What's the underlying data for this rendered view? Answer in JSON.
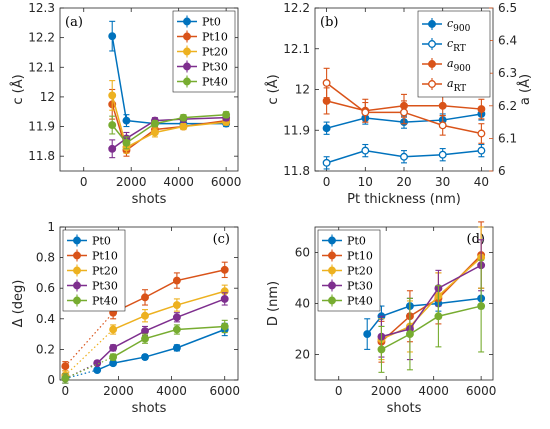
{
  "colors": {
    "Pt0": "#0072bd",
    "Pt10": "#d95319",
    "Pt20": "#edb120",
    "Pt30": "#7e2f8e",
    "Pt40": "#77ac30",
    "left_axis_b": "#0072bd",
    "right_axis_b": "#d95319"
  },
  "chart_data": [
    {
      "id": "a",
      "type": "line",
      "panel_label": "(a)",
      "xlabel": "shots",
      "ylabel": "c (Å)",
      "xlim": [
        -1000,
        6500
      ],
      "ylim": [
        11.75,
        12.3
      ],
      "xticks": [
        0,
        2000,
        4000,
        6000
      ],
      "xtick_labels": [
        "0",
        "2000",
        "4000",
        "6000"
      ],
      "yticks": [
        11.8,
        11.9,
        12,
        12.1,
        12.2,
        12.3
      ],
      "ytick_labels": [
        "11.8",
        "11.9",
        "12",
        "12.1",
        "12.2",
        "12.3"
      ],
      "legend_position": "top-right",
      "x": [
        1200,
        1800,
        3000,
        4200,
        6000
      ],
      "series": [
        {
          "name": "Pt0",
          "color_key": "Pt0",
          "y": [
            12.205,
            11.92,
            11.91,
            11.91,
            11.91
          ],
          "err": [
            0.05,
            0.02,
            0.01,
            0.01,
            0.01
          ]
        },
        {
          "name": "Pt10",
          "color_key": "Pt10",
          "y": [
            11.975,
            11.82,
            11.89,
            11.9,
            11.92
          ],
          "err": [
            0.05,
            0.02,
            0.015,
            0.01,
            0.01
          ]
        },
        {
          "name": "Pt20",
          "color_key": "Pt20",
          "y": [
            12.005,
            11.83,
            11.88,
            11.9,
            11.915
          ],
          "err": [
            0.05,
            0.02,
            0.015,
            0.01,
            0.01
          ]
        },
        {
          "name": "Pt30",
          "color_key": "Pt30",
          "y": [
            11.825,
            11.86,
            11.92,
            11.925,
            11.93
          ],
          "err": [
            0.03,
            0.02,
            0.01,
            0.01,
            0.01
          ]
        },
        {
          "name": "Pt40",
          "color_key": "Pt40",
          "y": [
            11.905,
            11.845,
            11.91,
            11.93,
            11.94
          ],
          "err": [
            0.03,
            0.02,
            0.01,
            0.01,
            0.01
          ]
        }
      ]
    },
    {
      "id": "b",
      "type": "line",
      "panel_label": "(b)",
      "xlabel": "Pt thickness (nm)",
      "ylabel": "c (Å)",
      "ylabel_right": "a (Å)",
      "xlim": [
        -3,
        43
      ],
      "ylim": [
        11.8,
        12.2
      ],
      "ylim_right": [
        6.0,
        6.5
      ],
      "xticks": [
        0,
        10,
        20,
        30,
        40
      ],
      "xtick_labels": [
        "0",
        "10",
        "20",
        "30",
        "40"
      ],
      "yticks": [
        11.8,
        11.9,
        12,
        12.1,
        12.2
      ],
      "ytick_labels": [
        "11.8",
        "11.9",
        "12",
        "12.1",
        "12.2"
      ],
      "yticks_right": [
        6.0,
        6.1,
        6.2,
        6.3,
        6.4,
        6.5
      ],
      "ytick_labels_right": [
        "6",
        "6.1",
        "6.2",
        "6.3",
        "6.4",
        "6.5"
      ],
      "legend_position": "top-right",
      "x": [
        0,
        10,
        20,
        30,
        40
      ],
      "series": [
        {
          "name": "c900",
          "legend_main": "c",
          "legend_sub": "900",
          "axis": "left",
          "color_key": "left_axis_b",
          "filled": true,
          "y": [
            11.905,
            11.93,
            11.92,
            11.925,
            11.94
          ],
          "err": [
            0.015,
            0.015,
            0.015,
            0.015,
            0.015
          ]
        },
        {
          "name": "cRT",
          "legend_main": "c",
          "legend_sub": "RT",
          "axis": "left",
          "color_key": "left_axis_b",
          "filled": false,
          "y": [
            11.82,
            11.85,
            11.835,
            11.84,
            11.85
          ],
          "err": [
            0.015,
            0.015,
            0.015,
            0.015,
            0.015
          ]
        },
        {
          "name": "a900",
          "legend_main": "a",
          "legend_sub": "900",
          "axis": "right",
          "color_key": "right_axis_b",
          "filled": true,
          "y": [
            6.215,
            6.185,
            6.2,
            6.2,
            6.19
          ],
          "err": [
            0.04,
            0.035,
            0.035,
            0.03,
            0.03
          ]
        },
        {
          "name": "aRT",
          "legend_main": "a",
          "legend_sub": "RT",
          "axis": "right",
          "color_key": "right_axis_b",
          "filled": false,
          "y": [
            6.27,
            6.18,
            6.18,
            6.14,
            6.115
          ],
          "err": [
            0.045,
            0.03,
            0.035,
            0.03,
            0.03
          ]
        }
      ]
    },
    {
      "id": "c",
      "type": "line",
      "panel_label": "(c)",
      "xlabel": "shots",
      "ylabel": "Δ (deg)",
      "xlim": [
        -200,
        6500
      ],
      "ylim": [
        0,
        1.0
      ],
      "xticks": [
        0,
        2000,
        4000,
        6000
      ],
      "xtick_labels": [
        "0",
        "2000",
        "4000",
        "6000"
      ],
      "yticks": [
        0,
        0.2,
        0.4,
        0.6,
        0.8,
        1.0
      ],
      "ytick_labels": [
        "0",
        "0.2",
        "0.4",
        "0.6",
        "0.8",
        "1"
      ],
      "legend_position": "top-left",
      "x": [
        1200,
        1800,
        3000,
        4200,
        6000
      ],
      "x0": 0,
      "series": [
        {
          "name": "Pt0",
          "color_key": "Pt0",
          "y0": 0.01,
          "y": [
            0.065,
            0.11,
            0.15,
            0.21,
            0.33
          ],
          "err": [
            0.01,
            0.015,
            0.015,
            0.02,
            0.04
          ]
        },
        {
          "name": "Pt10",
          "color_key": "Pt10",
          "y0": 0.09,
          "y": [
            null,
            0.44,
            0.54,
            0.65,
            0.72
          ],
          "err": [
            0,
            0.04,
            0.05,
            0.05,
            0.05
          ]
        },
        {
          "name": "Pt20",
          "color_key": "Pt20",
          "y0": 0.03,
          "y": [
            null,
            0.33,
            0.42,
            0.49,
            0.58
          ],
          "err": [
            0,
            0.03,
            0.04,
            0.04,
            0.04
          ]
        },
        {
          "name": "Pt30",
          "color_key": "Pt30",
          "y0": 0.01,
          "y": [
            0.11,
            0.21,
            0.32,
            0.41,
            0.53
          ],
          "err": [
            0.015,
            0.02,
            0.03,
            0.03,
            0.04
          ]
        },
        {
          "name": "Pt40",
          "color_key": "Pt40",
          "y0": 0.01,
          "y": [
            null,
            0.15,
            0.27,
            0.33,
            0.35
          ],
          "err": [
            0,
            0.02,
            0.03,
            0.03,
            0.04
          ]
        }
      ]
    },
    {
      "id": "d",
      "type": "line",
      "panel_label": "(d)",
      "xlabel": "shots",
      "ylabel": "D (nm)",
      "xlim": [
        -1000,
        6500
      ],
      "ylim": [
        10,
        70
      ],
      "xticks": [
        0,
        2000,
        4000,
        6000
      ],
      "xtick_labels": [
        "0",
        "2000",
        "4000",
        "6000"
      ],
      "yticks": [
        20,
        40,
        60
      ],
      "ytick_labels": [
        "20",
        "40",
        "60"
      ],
      "legend_position": "top-left",
      "x": [
        1200,
        1800,
        3000,
        4200,
        6000
      ],
      "series": [
        {
          "name": "Pt0",
          "color_key": "Pt0",
          "y": [
            28,
            35,
            39,
            40,
            42
          ],
          "err": [
            6,
            4,
            3,
            3,
            4
          ]
        },
        {
          "name": "Pt10",
          "color_key": "Pt10",
          "y": [
            null,
            25,
            35,
            42,
            59
          ],
          "err": [
            0,
            8,
            10,
            10,
            13
          ]
        },
        {
          "name": "Pt20",
          "color_key": "Pt20",
          "y": [
            null,
            26,
            31,
            43,
            58
          ],
          "err": [
            0,
            8,
            10,
            9,
            12
          ]
        },
        {
          "name": "Pt30",
          "color_key": "Pt30",
          "y": [
            null,
            27,
            30,
            46,
            55
          ],
          "err": [
            0,
            8,
            12,
            7,
            10
          ]
        },
        {
          "name": "Pt40",
          "color_key": "Pt40",
          "y": [
            null,
            22,
            28,
            35,
            39
          ],
          "err": [
            0,
            9,
            14,
            12,
            18
          ]
        }
      ]
    }
  ]
}
